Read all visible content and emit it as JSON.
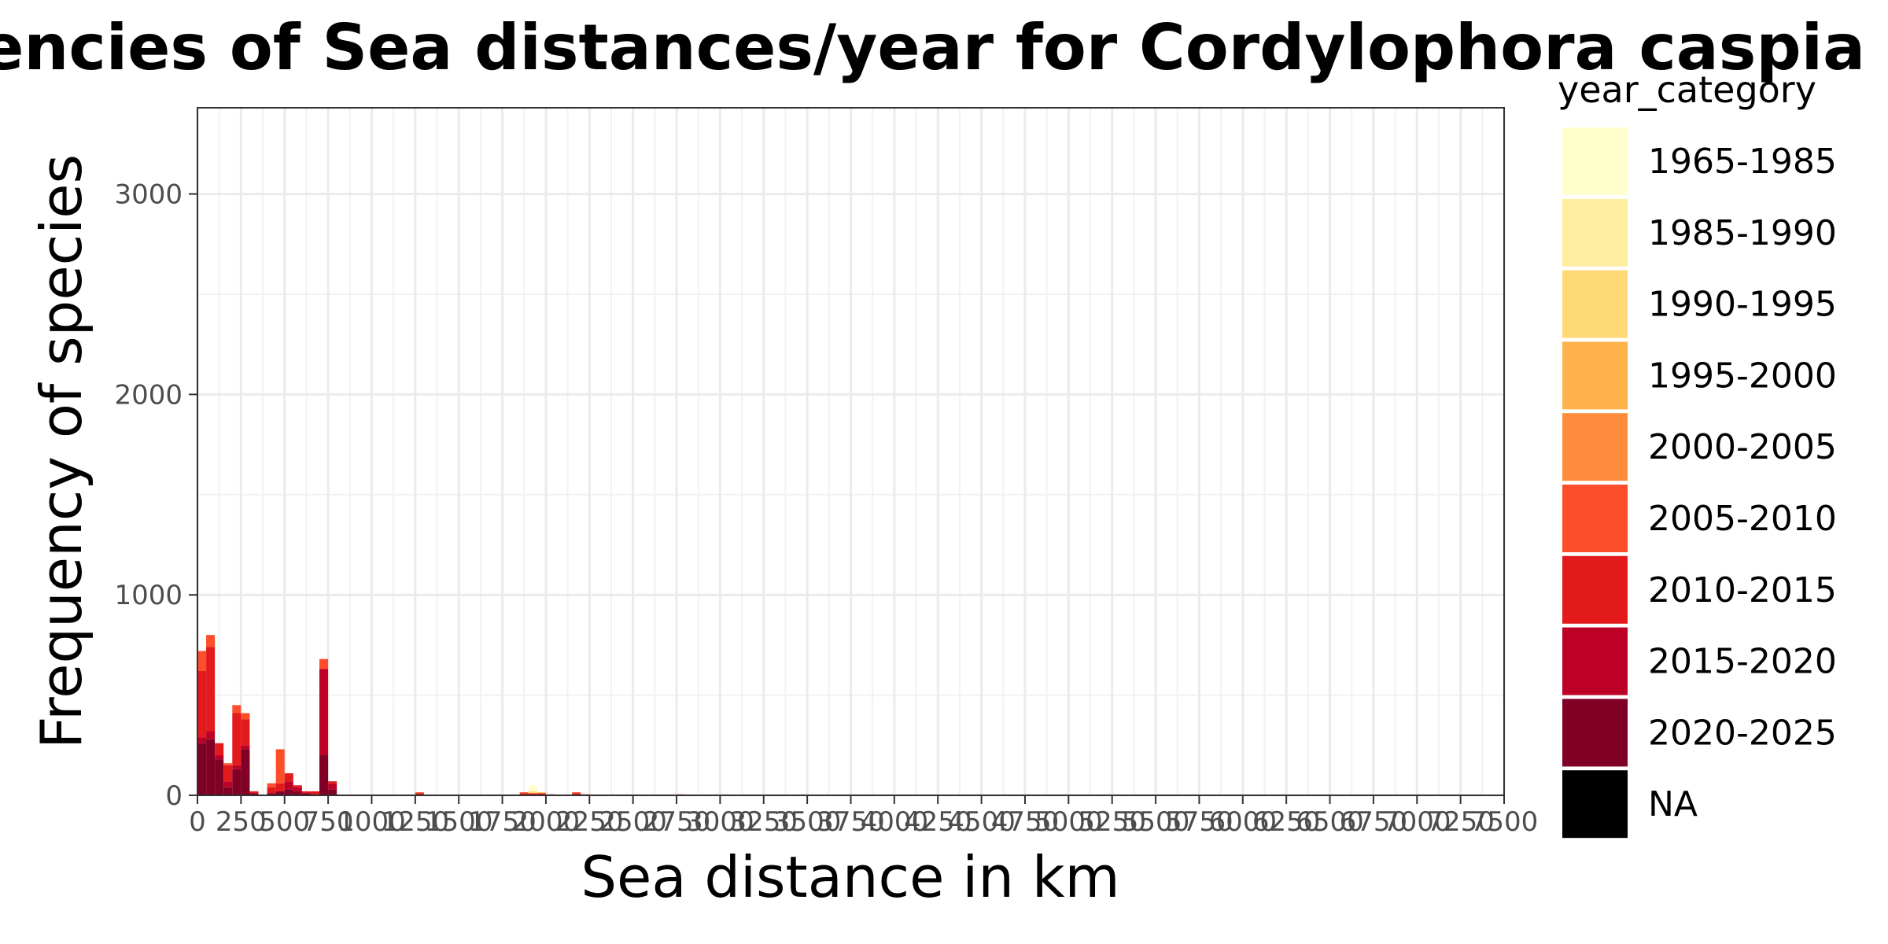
{
  "chart_data": {
    "type": "bar",
    "stacked": true,
    "title": "Frequencies of Sea distances/year for Cordylophora caspia in TZS",
    "xlabel": "Sea distance in km",
    "ylabel": "Frequency of species",
    "xlim": [
      0,
      7500
    ],
    "ylim": [
      0,
      3430
    ],
    "bin_width": 50,
    "grid": true,
    "x_ticks": [
      0,
      250,
      500,
      750,
      1000,
      1250,
      1500,
      1750,
      2000,
      2250,
      2500,
      2750,
      3000,
      3250,
      3500,
      3750,
      4000,
      4250,
      4500,
      4750,
      5000,
      5250,
      5500,
      5750,
      6000,
      6250,
      6500,
      6750,
      7000,
      7250,
      7500
    ],
    "x_tick_labels": [
      "0",
      "250",
      "500",
      "750",
      "1000",
      "1250",
      "1500",
      "1750",
      "2000",
      "2250",
      "2500",
      "2750",
      "3000",
      "3250",
      "3500",
      "3750",
      "4000",
      "4250",
      "4500",
      "4750",
      "5000",
      "5250",
      "5500",
      "5750",
      "6000",
      "6250",
      "6500",
      "6750",
      "7000",
      "7250",
      "7500"
    ],
    "y_ticks": [
      0,
      1000,
      2000,
      3000
    ],
    "y_tick_labels": [
      "0",
      "1000",
      "2000",
      "3000"
    ],
    "legend": {
      "title": "year_category",
      "position": "right",
      "entries": [
        {
          "label": "1965-1985",
          "color": "#FFFFCC"
        },
        {
          "label": "1985-1990",
          "color": "#FFEDA0"
        },
        {
          "label": "1990-1995",
          "color": "#FED976"
        },
        {
          "label": "1995-2000",
          "color": "#FEB24C"
        },
        {
          "label": "2000-2005",
          "color": "#FD8D3C"
        },
        {
          "label": "2005-2010",
          "color": "#FC4E2A"
        },
        {
          "label": "2010-2015",
          "color": "#E31A1C"
        },
        {
          "label": "2015-2020",
          "color": "#BD0026"
        },
        {
          "label": "2020-2025",
          "color": "#800026"
        },
        {
          "label": "NA",
          "color": "#000000"
        }
      ]
    },
    "bins": [
      {
        "x": 0,
        "counts": {
          "2020-2025": 260,
          "2015-2020": 30,
          "2010-2015": 330,
          "2005-2010": 100
        }
      },
      {
        "x": 50,
        "counts": {
          "2020-2025": 280,
          "2015-2020": 40,
          "2010-2015": 420,
          "2005-2010": 60
        }
      },
      {
        "x": 100,
        "counts": {
          "2020-2025": 180,
          "2015-2020": 20,
          "2010-2015": 60
        }
      },
      {
        "x": 150,
        "counts": {
          "2020-2025": 40,
          "2015-2020": 30,
          "2010-2015": 80,
          "2005-2010": 10
        }
      },
      {
        "x": 200,
        "counts": {
          "2020-2025": 130,
          "2015-2020": 20,
          "2010-2015": 260,
          "2005-2010": 40
        }
      },
      {
        "x": 250,
        "counts": {
          "2020-2025": 230,
          "2015-2020": 20,
          "2010-2015": 130,
          "2005-2010": 30
        }
      },
      {
        "x": 300,
        "counts": {
          "2020-2025": 10,
          "2010-2015": 10
        }
      },
      {
        "x": 400,
        "counts": {
          "2020-2025": 10,
          "2010-2015": 30,
          "2005-2010": 20
        }
      },
      {
        "x": 450,
        "counts": {
          "2020-2025": 20,
          "2010-2015": 40,
          "2005-2010": 170
        }
      },
      {
        "x": 500,
        "counts": {
          "2020-2025": 30,
          "2015-2020": 40,
          "2010-2015": 40
        }
      },
      {
        "x": 550,
        "counts": {
          "2020-2025": 20,
          "2015-2020": 20,
          "2010-2015": 10
        }
      },
      {
        "x": 600,
        "counts": {
          "2020-2025": 10,
          "2010-2015": 10
        }
      },
      {
        "x": 650,
        "counts": {
          "2010-2015": 20
        }
      },
      {
        "x": 700,
        "counts": {
          "2020-2025": 200,
          "2015-2020": 430,
          "2005-2010": 50
        }
      },
      {
        "x": 750,
        "counts": {
          "2020-2025": 30,
          "2015-2020": 30,
          "2010-2015": 10
        }
      },
      {
        "x": 1250,
        "counts": {
          "2010-2015": 10,
          "2005-2010": 5
        }
      },
      {
        "x": 1850,
        "counts": {
          "2010-2015": 10,
          "2005-2010": 5
        }
      },
      {
        "x": 1900,
        "counts": {
          "1965-1985": 30,
          "1990-1995": 10,
          "2010-2015": 10
        }
      },
      {
        "x": 1950,
        "counts": {
          "2010-2015": 10,
          "1995-2000": 5
        }
      },
      {
        "x": 2000,
        "counts": {
          "2010-2015": 5
        }
      },
      {
        "x": 2150,
        "counts": {
          "2010-2015": 10,
          "2005-2010": 5
        }
      },
      {
        "x": 2200,
        "counts": {
          "2010-2015": 5
        }
      },
      {
        "x": 2750,
        "counts": {
          "2005-2010": 5
        }
      }
    ]
  }
}
